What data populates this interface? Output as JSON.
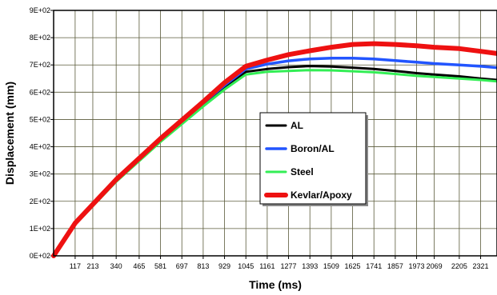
{
  "chart_data": {
    "type": "line",
    "xlabel": "Time (ms)",
    "ylabel": "Displacement (mm)",
    "xlim": [
      0,
      2410
    ],
    "ylim": [
      0,
      900
    ],
    "x_tick_values": [
      117,
      213,
      340,
      465,
      581,
      697,
      813,
      929,
      1045,
      1161,
      1277,
      1393,
      1509,
      1625,
      1741,
      1857,
      1973,
      2069,
      2205,
      2321
    ],
    "x_tick_labels": [
      "117",
      "213",
      "340",
      "465",
      "581",
      "697",
      "813",
      "929",
      "1045",
      "1161",
      "1277",
      "1393",
      "1509",
      "1625",
      "1741",
      "1857",
      "1973",
      "2069",
      "2205",
      "2321"
    ],
    "y_tick_values": [
      0,
      100,
      200,
      300,
      400,
      500,
      600,
      700,
      800,
      900
    ],
    "y_tick_labels": [
      "0E+02",
      "1E+02",
      "2E+02",
      "3E+02",
      "4E+02",
      "5E+02",
      "6E+02",
      "7E+02",
      "8E+02",
      "9E+02"
    ],
    "grid": true,
    "legend_position": "center",
    "series": [
      {
        "name": "AL",
        "color": "#000000",
        "x": [
          0,
          117,
          340,
          581,
          813,
          929,
          1045,
          1161,
          1277,
          1393,
          1509,
          1625,
          1741,
          1857,
          1973,
          2069,
          2205,
          2321,
          2410
        ],
        "y": [
          0,
          118,
          275,
          425,
          555,
          620,
          675,
          685,
          692,
          696,
          694,
          690,
          685,
          678,
          670,
          665,
          658,
          650,
          645
        ]
      },
      {
        "name": "Boron/AL",
        "color": "#2255ff",
        "x": [
          0,
          117,
          340,
          581,
          813,
          929,
          1045,
          1161,
          1277,
          1393,
          1509,
          1625,
          1741,
          1857,
          1973,
          2069,
          2205,
          2321,
          2410
        ],
        "y": [
          0,
          118,
          277,
          428,
          560,
          625,
          685,
          703,
          715,
          722,
          725,
          725,
          722,
          716,
          710,
          705,
          700,
          695,
          690
        ]
      },
      {
        "name": "Steel",
        "color": "#33ee55",
        "x": [
          0,
          117,
          340,
          581,
          813,
          929,
          1045,
          1161,
          1277,
          1393,
          1509,
          1625,
          1741,
          1857,
          1973,
          2069,
          2205,
          2321,
          2410
        ],
        "y": [
          0,
          115,
          272,
          418,
          548,
          610,
          665,
          675,
          678,
          681,
          680,
          677,
          673,
          667,
          660,
          656,
          650,
          645,
          640
        ]
      },
      {
        "name": "Kevlar/Apoxy",
        "color": "#ee1111",
        "x": [
          0,
          117,
          340,
          581,
          813,
          929,
          1045,
          1161,
          1277,
          1393,
          1509,
          1625,
          1741,
          1857,
          1973,
          2069,
          2205,
          2321,
          2410
        ],
        "y": [
          0,
          120,
          280,
          430,
          565,
          635,
          695,
          718,
          738,
          752,
          765,
          775,
          778,
          775,
          770,
          765,
          760,
          750,
          742
        ]
      }
    ]
  }
}
